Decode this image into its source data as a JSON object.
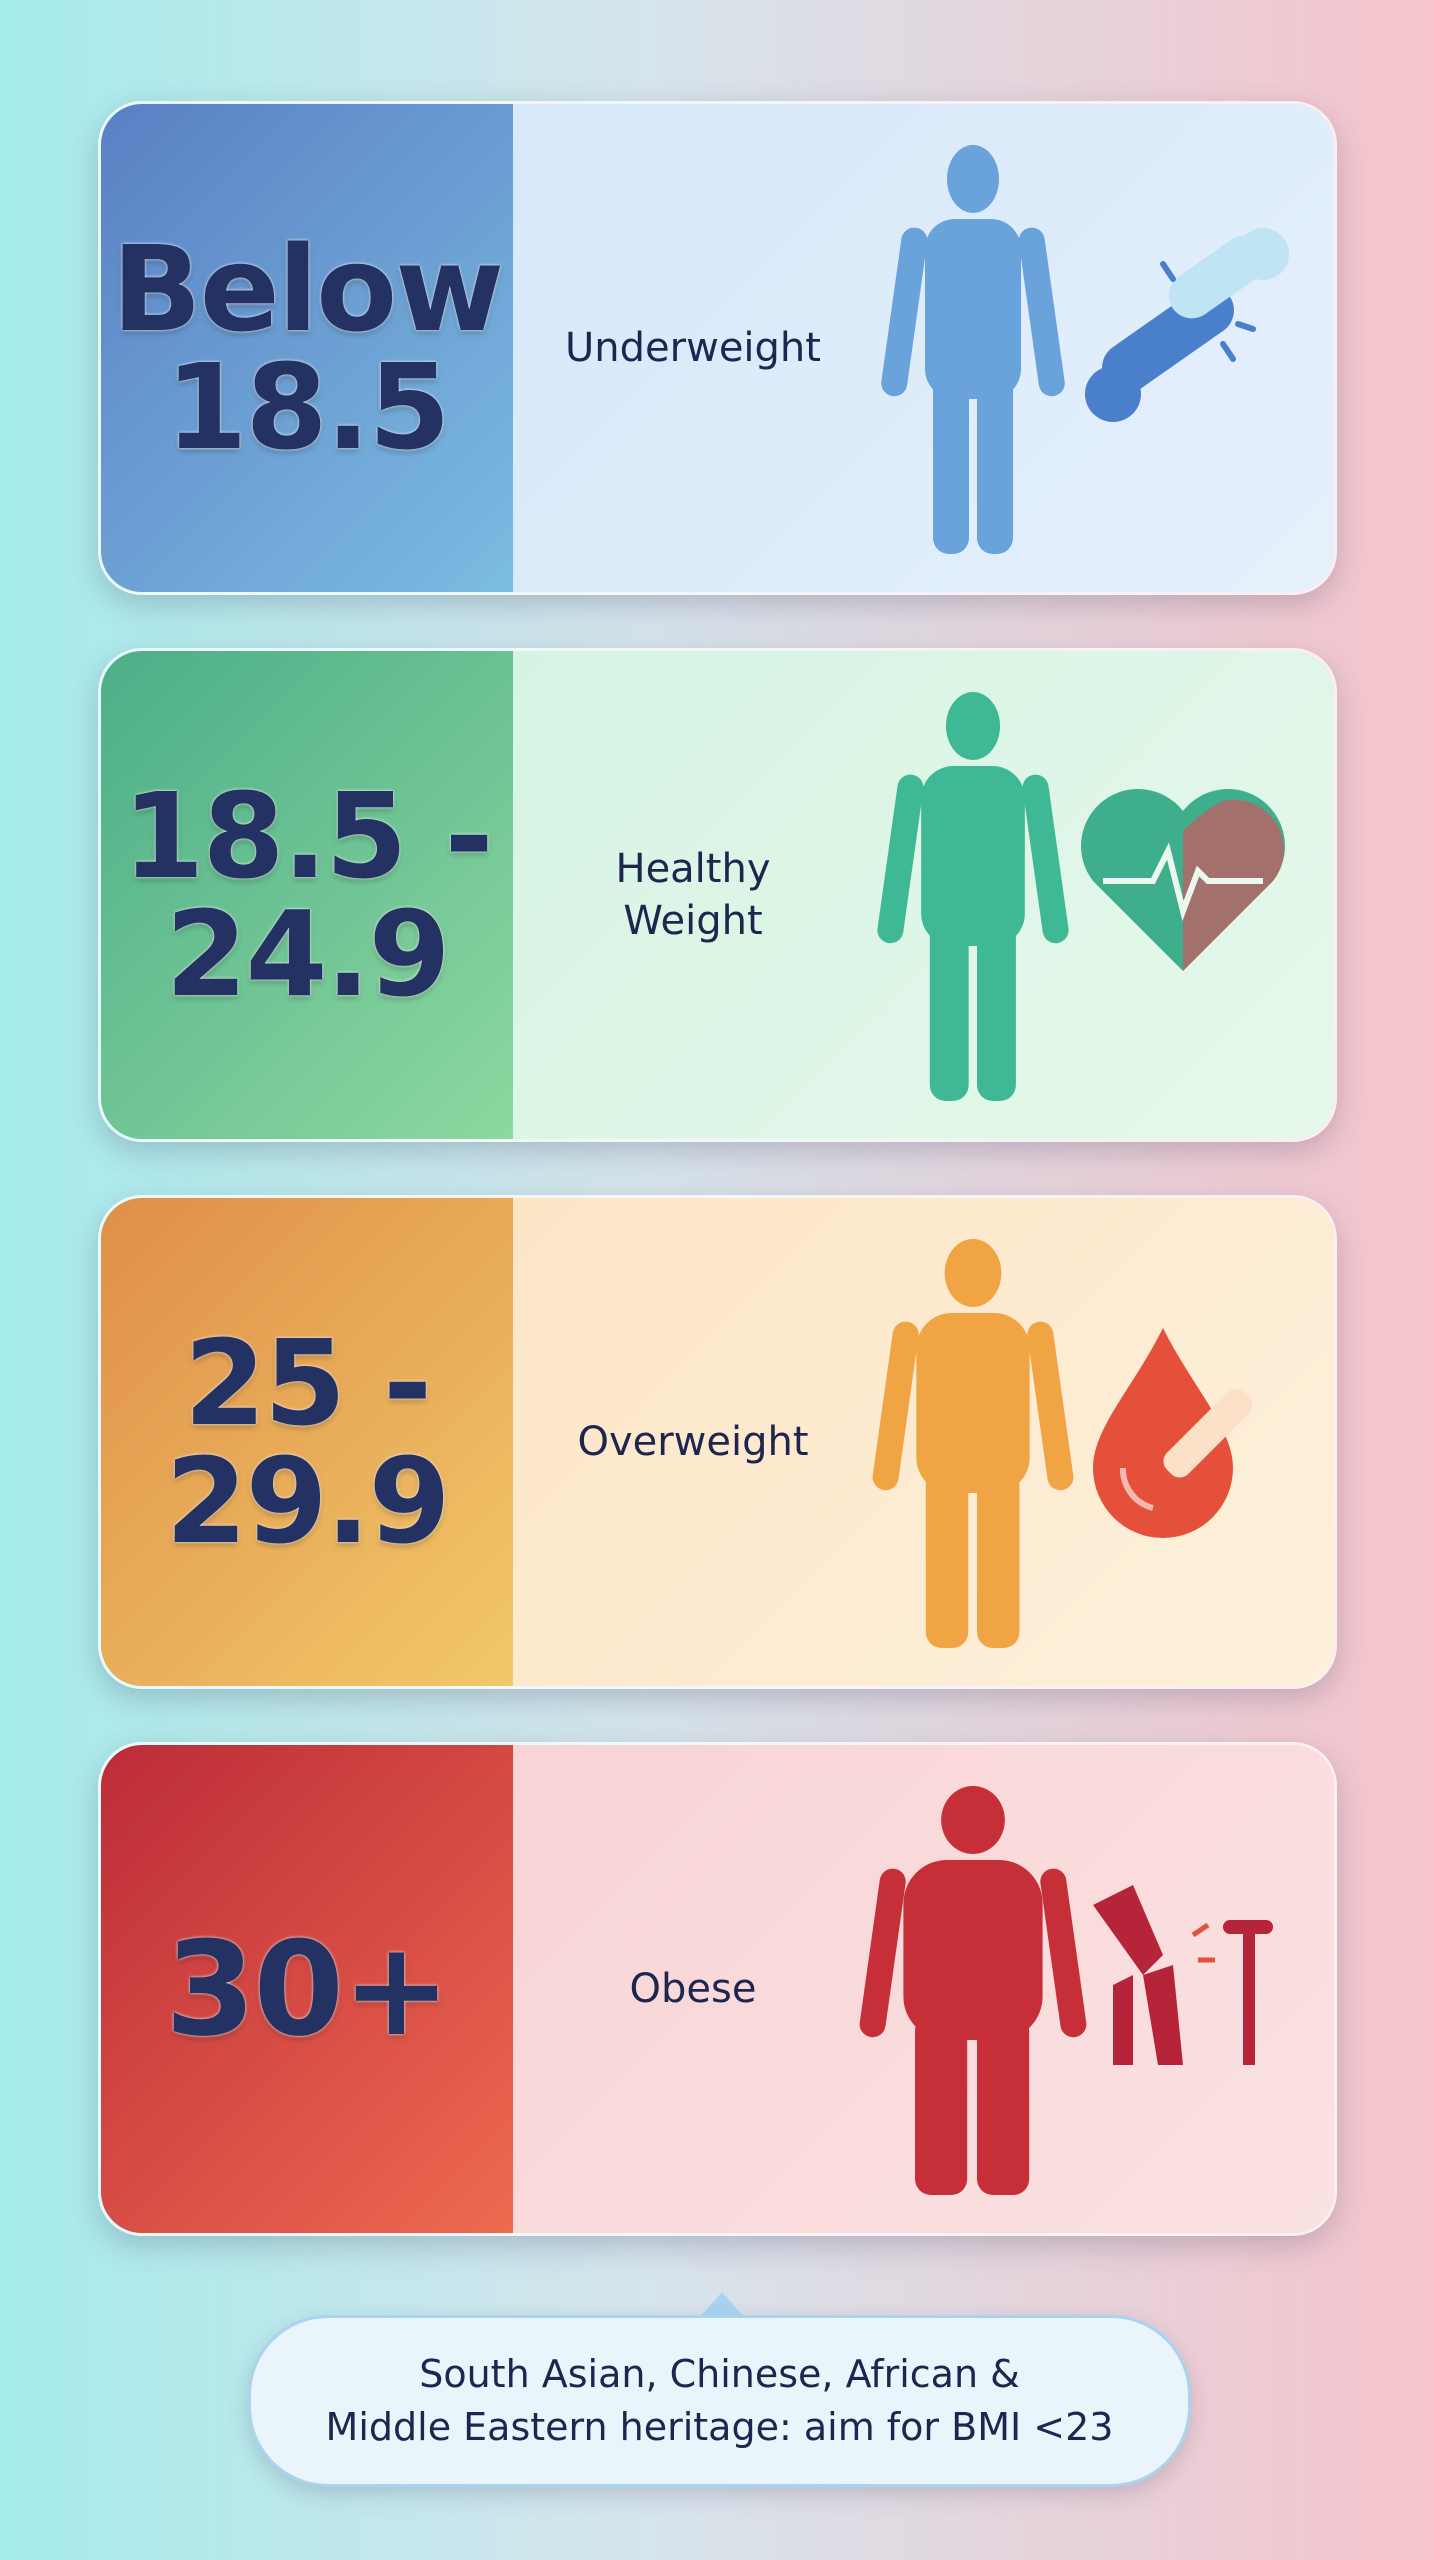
{
  "cards": [
    {
      "range": [
        "Below",
        "18.5"
      ],
      "label": [
        "Underweight"
      ]
    },
    {
      "range": [
        "18.5 -",
        "24.9"
      ],
      "label": [
        "Healthy",
        "Weight"
      ]
    },
    {
      "range": [
        "25 -",
        "29.9"
      ],
      "label": [
        "Overweight"
      ]
    },
    {
      "range": [
        "30+"
      ],
      "label": [
        "Obese"
      ]
    }
  ],
  "note": [
    "South Asian, Chinese, African &",
    "Middle Eastern heritage: aim for BMI <23"
  ]
}
